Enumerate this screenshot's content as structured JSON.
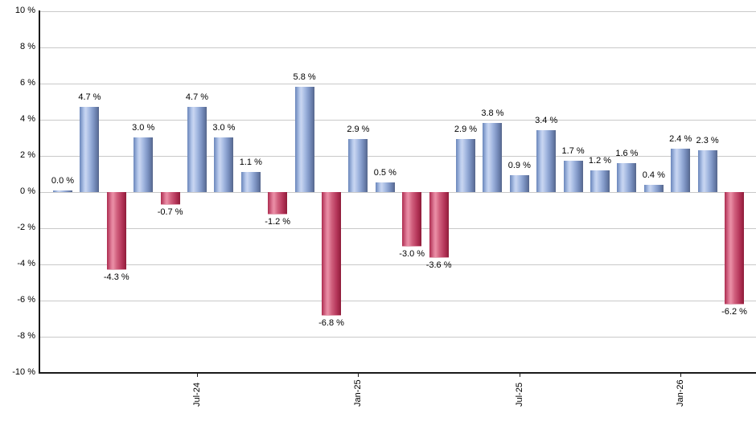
{
  "chart_data": {
    "type": "bar",
    "title": "",
    "xlabel": "",
    "ylabel": "",
    "ylim": [
      -10,
      10
    ],
    "y_tick_step": 2,
    "grid": true,
    "legend_position": "none",
    "y_tick_labels": [
      "10 %",
      "8 %",
      "6 %",
      "4 %",
      "2 %",
      "0 %",
      "-2 %",
      "-4 %",
      "-6 %",
      "-8 %",
      "-10 %"
    ],
    "values": [
      0.0,
      4.7,
      -4.3,
      3.0,
      -0.7,
      4.7,
      3.0,
      1.1,
      -1.2,
      5.8,
      -6.8,
      2.9,
      0.5,
      -3.0,
      -3.6,
      2.9,
      3.8,
      0.9,
      3.4,
      1.7,
      1.2,
      1.6,
      0.4,
      2.4,
      2.3,
      -6.2
    ],
    "value_labels": [
      "0.0 %",
      "4.7 %",
      "-4.3 %",
      "3.0 %",
      "-0.7 %",
      "4.7 %",
      "3.0 %",
      "1.1 %",
      "-1.2 %",
      "5.8 %",
      "-6.8 %",
      "2.9 %",
      "0.5 %",
      "-3.0 %",
      "-3.6 %",
      "2.9 %",
      "3.8 %",
      "0.9 %",
      "3.4 %",
      "1.7 %",
      "1.2 %",
      "1.6 %",
      "0.4 %",
      "2.4 %",
      "2.3 %",
      "-6.2 %"
    ],
    "x_ticks": [
      {
        "label": "Jul-24",
        "bar_index": 5
      },
      {
        "label": "Jan-25",
        "bar_index": 11
      },
      {
        "label": "Jul-25",
        "bar_index": 17
      },
      {
        "label": "Jan-26",
        "bar_index": 23
      }
    ],
    "colors": {
      "positive_bar": "#8aa5d4",
      "negative_bar": "#c24a68",
      "gridline": "#c9c9c9",
      "axis": "#1a1a1a",
      "text": "#000000"
    }
  }
}
